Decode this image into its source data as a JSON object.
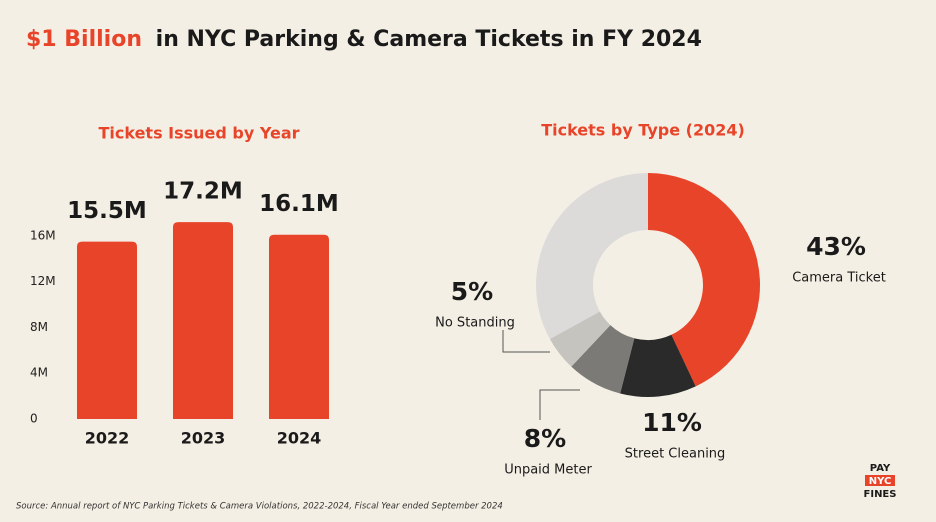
{
  "title": {
    "highlight": "$1 Billion",
    "text": "in NYC Parking & Camera Tickets in FY 2024"
  },
  "chart_data": [
    {
      "type": "bar",
      "title": "Tickets Issued by Year",
      "categories": [
        "2022",
        "2023",
        "2024"
      ],
      "values": [
        15.5,
        17.2,
        16.1
      ],
      "value_labels": [
        "15.5M",
        "17.2M",
        "16.1M"
      ],
      "color": "#e8442a",
      "ylim": [
        0,
        18
      ],
      "yticks": [
        0,
        {
          "value": 4,
          "label": "4M"
        },
        {
          "value": 8,
          "label": "8M"
        },
        {
          "value": 12,
          "label": "12M"
        },
        {
          "value": 16,
          "label": "16M"
        }
      ]
    },
    {
      "type": "pie",
      "title": "Tickets by Type (2024)",
      "donut": true,
      "categories": [
        "Camera Ticket",
        "Street Cleaning",
        "Unpaid Meter",
        "No Standing",
        null
      ],
      "values": [
        43,
        11,
        8,
        5,
        33
      ],
      "value_labels": [
        "43%",
        "11%",
        "8%",
        "5%",
        null
      ],
      "colors": [
        "#e8442a",
        "#2a2a2a",
        "#7b7a77",
        "#c6c4bf",
        "#dcdbd9"
      ]
    }
  ],
  "source": "Source: Annual report of NYC Parking Tickets & Camera Violations, 2022-2024, Fiscal Year ended September 2024",
  "logo": [
    "PAY",
    "NYC",
    "FINES"
  ]
}
